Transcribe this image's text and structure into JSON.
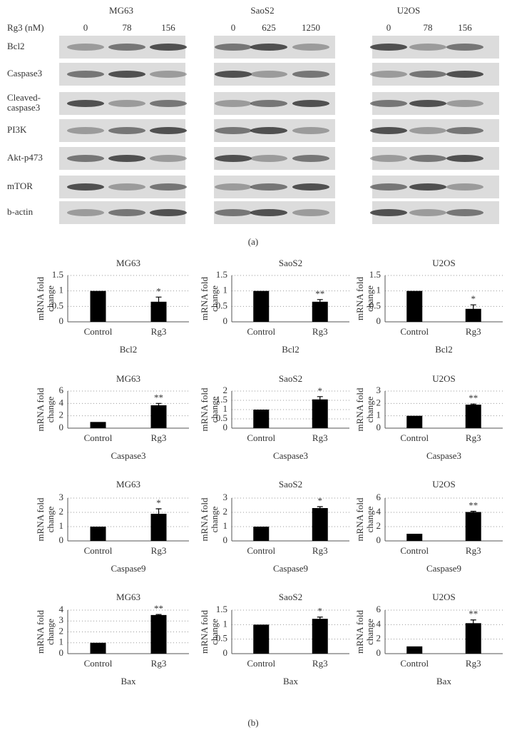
{
  "blot": {
    "dose_label": "Rg3 (nM)",
    "groups": [
      {
        "name": "MG63",
        "doses": [
          "0",
          "78",
          "156"
        ]
      },
      {
        "name": "SaoS2",
        "doses": [
          "0",
          "625",
          "1250"
        ]
      },
      {
        "name": "U2OS",
        "doses": [
          "0",
          "78",
          "156"
        ]
      }
    ],
    "rows": [
      [
        "Bcl2"
      ],
      [
        "Caspase3"
      ],
      [
        "Cleaved-",
        "caspase3"
      ],
      [
        "PI3K"
      ],
      [
        "Akt-p473"
      ],
      [
        "mTOR"
      ],
      [
        "b-actin"
      ]
    ]
  },
  "captions": [
    "(a)",
    "(b)"
  ],
  "chart_data": [
    {
      "type": "bar",
      "title": "MG63",
      "xlabel": "Bcl2",
      "ylabel": [
        "mRNA fold",
        "change"
      ],
      "categories": [
        "Control",
        "Rg3"
      ],
      "values": [
        1,
        0.65
      ],
      "errors": [
        0,
        0.15
      ],
      "value_annotations": [
        null,
        "*"
      ],
      "ylim": [
        0,
        1.5
      ],
      "yticks": [
        0,
        0.5,
        1,
        1.5
      ],
      "grid": true,
      "color": "#000000"
    },
    {
      "type": "bar",
      "title": "SaoS2",
      "xlabel": "Bcl2",
      "ylabel": [
        "mRNA fold",
        "change"
      ],
      "categories": [
        "Control",
        "Rg3"
      ],
      "values": [
        1,
        0.65
      ],
      "errors": [
        0,
        0.07
      ],
      "value_annotations": [
        null,
        "**"
      ],
      "ylim": [
        0,
        1.5
      ],
      "yticks": [
        0,
        0.5,
        1,
        1.5
      ],
      "grid": true,
      "color": "#000000"
    },
    {
      "type": "bar",
      "title": "U2OS",
      "xlabel": "Bcl2",
      "ylabel": [
        "mRNA fold",
        "change"
      ],
      "categories": [
        "Control",
        "Rg3"
      ],
      "values": [
        1,
        0.42
      ],
      "errors": [
        0,
        0.13
      ],
      "value_annotations": [
        null,
        "*"
      ],
      "ylim": [
        0,
        1.5
      ],
      "yticks": [
        0,
        0.5,
        1,
        1.5
      ],
      "grid": true,
      "color": "#000000"
    },
    {
      "type": "bar",
      "title": "MG63",
      "xlabel": "Caspase3",
      "ylabel": [
        "mRNA fold",
        "change"
      ],
      "categories": [
        "Control",
        "Rg3"
      ],
      "values": [
        1,
        3.7
      ],
      "errors": [
        0,
        0.3
      ],
      "value_annotations": [
        null,
        "**"
      ],
      "ylim": [
        0,
        6
      ],
      "yticks": [
        0,
        2,
        4,
        6
      ],
      "grid": true,
      "color": "#000000"
    },
    {
      "type": "bar",
      "title": "SaoS2",
      "xlabel": "Caspase3",
      "ylabel": [
        "mRNA fold",
        "change"
      ],
      "categories": [
        "Control",
        "Rg3"
      ],
      "values": [
        1,
        1.55
      ],
      "errors": [
        0,
        0.15
      ],
      "value_annotations": [
        null,
        "*"
      ],
      "ylim": [
        0,
        2
      ],
      "yticks": [
        0,
        0.5,
        1,
        1.5,
        2
      ],
      "grid": true,
      "color": "#000000"
    },
    {
      "type": "bar",
      "title": "U2OS",
      "xlabel": "Caspase3",
      "ylabel": [
        "mRNA fold",
        "change"
      ],
      "categories": [
        "Control",
        "Rg3"
      ],
      "values": [
        1,
        1.9
      ],
      "errors": [
        0,
        0.05
      ],
      "value_annotations": [
        null,
        "**"
      ],
      "ylim": [
        0,
        3
      ],
      "yticks": [
        0,
        1,
        2,
        3
      ],
      "grid": true,
      "color": "#000000"
    },
    {
      "type": "bar",
      "title": "MG63",
      "xlabel": "Caspase9",
      "ylabel": [
        "mRNA fold",
        "change"
      ],
      "categories": [
        "Control",
        "Rg3"
      ],
      "values": [
        1,
        1.9
      ],
      "errors": [
        0,
        0.35
      ],
      "value_annotations": [
        null,
        "*"
      ],
      "ylim": [
        0,
        3
      ],
      "yticks": [
        0,
        1,
        2,
        3
      ],
      "grid": true,
      "color": "#000000"
    },
    {
      "type": "bar",
      "title": "SaoS2",
      "xlabel": "Caspase9",
      "ylabel": [
        "mRNA fold",
        "change"
      ],
      "categories": [
        "Control",
        "Rg3"
      ],
      "values": [
        1,
        2.3
      ],
      "errors": [
        0,
        0.1
      ],
      "value_annotations": [
        null,
        "*"
      ],
      "ylim": [
        0,
        3
      ],
      "yticks": [
        0,
        1,
        2,
        3
      ],
      "grid": true,
      "color": "#000000"
    },
    {
      "type": "bar",
      "title": "U2OS",
      "xlabel": "Caspase9",
      "ylabel": [
        "mRNA fold",
        "change"
      ],
      "categories": [
        "Control",
        "Rg3"
      ],
      "values": [
        1,
        4.05
      ],
      "errors": [
        0,
        0.1
      ],
      "value_annotations": [
        null,
        "**"
      ],
      "ylim": [
        0,
        6
      ],
      "yticks": [
        0,
        2,
        4,
        6
      ],
      "grid": true,
      "color": "#000000"
    },
    {
      "type": "bar",
      "title": "MG63",
      "xlabel": "Bax",
      "ylabel": [
        "mRNA fold",
        "change"
      ],
      "categories": [
        "Control",
        "Rg3"
      ],
      "values": [
        1,
        3.55
      ],
      "errors": [
        0,
        0.05
      ],
      "value_annotations": [
        null,
        "**"
      ],
      "ylim": [
        0,
        4
      ],
      "yticks": [
        0,
        1,
        2,
        3,
        4
      ],
      "grid": true,
      "color": "#000000"
    },
    {
      "type": "bar",
      "title": "SaoS2",
      "xlabel": "Bax",
      "ylabel": [
        "mRNA fold",
        "change"
      ],
      "categories": [
        "Control",
        "Rg3"
      ],
      "values": [
        1,
        1.2
      ],
      "errors": [
        0,
        0.06
      ],
      "value_annotations": [
        null,
        "*"
      ],
      "ylim": [
        0,
        1.5
      ],
      "yticks": [
        0,
        0.5,
        1,
        1.5
      ],
      "grid": true,
      "color": "#000000"
    },
    {
      "type": "bar",
      "title": "U2OS",
      "xlabel": "Bax",
      "ylabel": [
        "mRNA fold",
        "change"
      ],
      "categories": [
        "Control",
        "Rg3"
      ],
      "values": [
        1,
        4.2
      ],
      "errors": [
        0,
        0.45
      ],
      "value_annotations": [
        null,
        "**"
      ],
      "ylim": [
        0,
        6
      ],
      "yticks": [
        0,
        2,
        4,
        6
      ],
      "grid": true,
      "color": "#000000"
    }
  ]
}
